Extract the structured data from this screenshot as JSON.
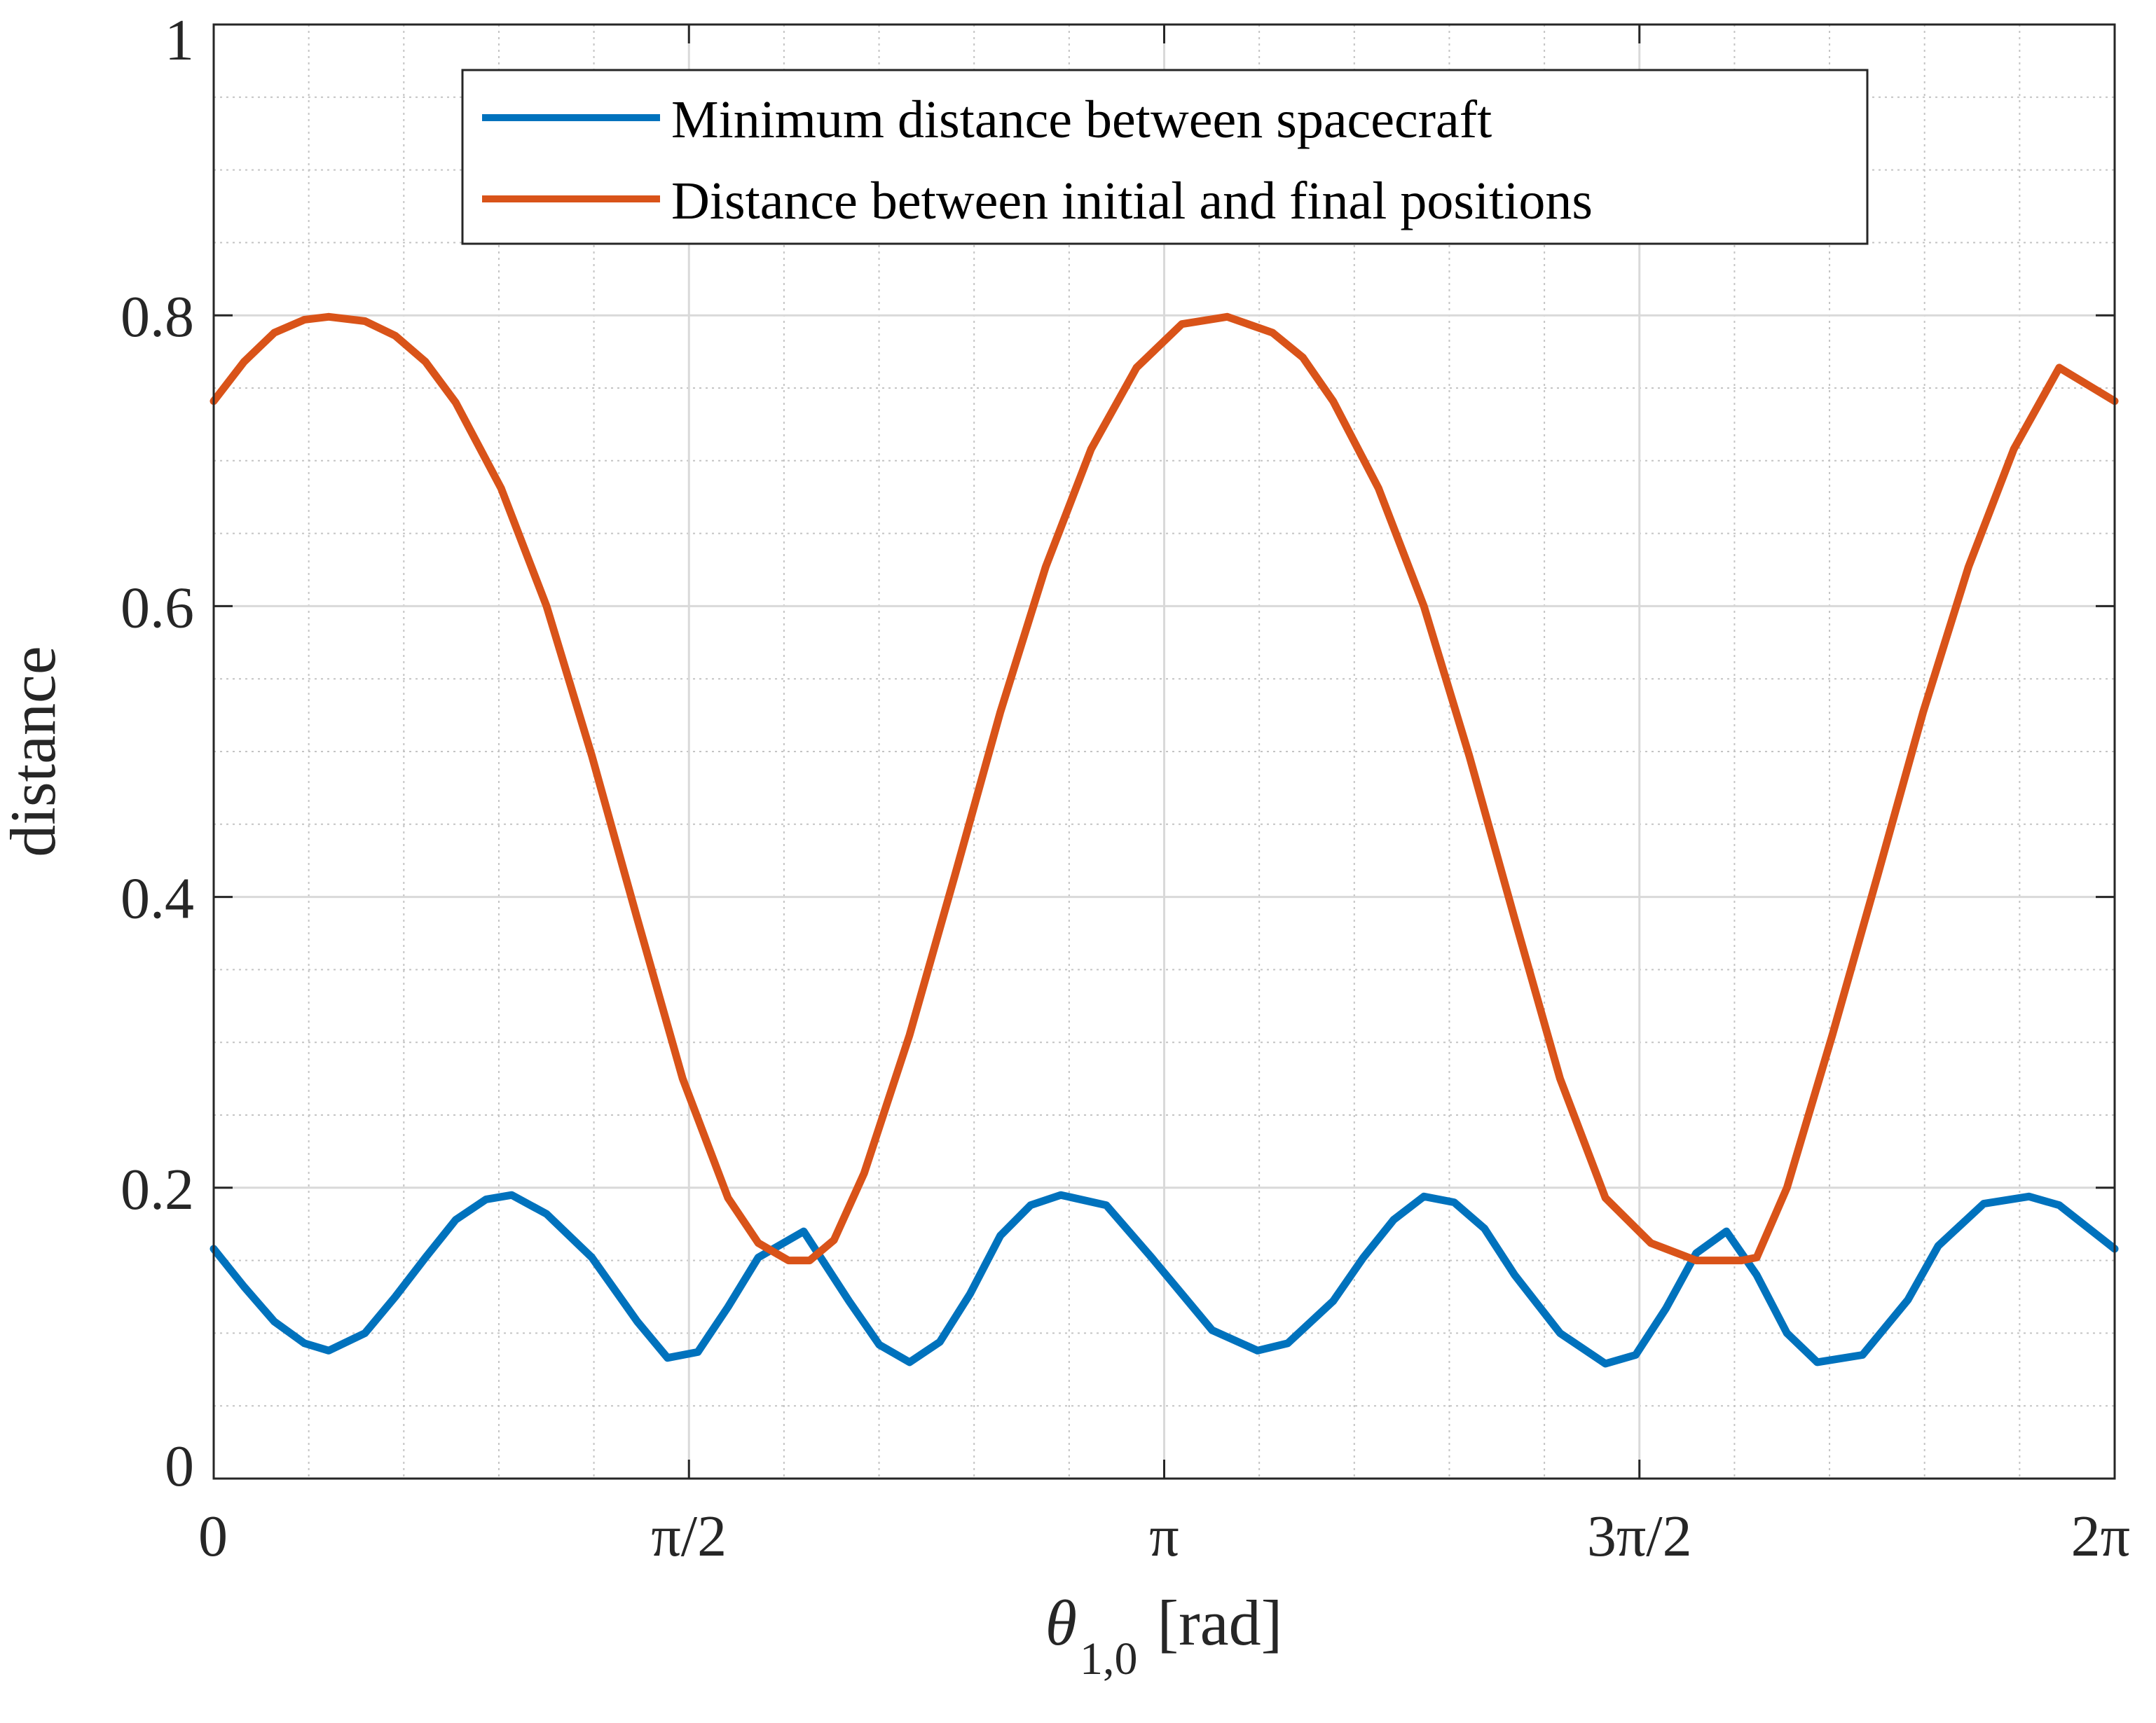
{
  "chart_data": {
    "type": "line",
    "xlabel": {
      "symbol": "θ",
      "subscript": "1,0",
      "unit": "[rad]"
    },
    "ylabel": "distance",
    "xlim": [
      0,
      6.283185
    ],
    "ylim": [
      0,
      1
    ],
    "xticks": [
      {
        "value": 0,
        "label": "0"
      },
      {
        "value": 1.570796,
        "label": "π/2"
      },
      {
        "value": 3.141593,
        "label": "π"
      },
      {
        "value": 4.712389,
        "label": "3π/2"
      },
      {
        "value": 6.283185,
        "label": "2π"
      }
    ],
    "yticks": [
      {
        "value": 0,
        "label": "0"
      },
      {
        "value": 0.2,
        "label": "0.2"
      },
      {
        "value": 0.4,
        "label": "0.4"
      },
      {
        "value": 0.6,
        "label": "0.6"
      },
      {
        "value": 0.8,
        "label": "0.8"
      },
      {
        "value": 1,
        "label": "1"
      }
    ],
    "grid": true,
    "minor_grid": true,
    "legend_position": "top-center",
    "series": [
      {
        "name": "Minimum distance between spacecraft",
        "color": "#0072BD",
        "x": [
          0,
          0.1,
          0.2,
          0.3,
          0.38,
          0.5,
          0.6,
          0.7,
          0.8,
          0.9,
          0.985,
          1.1,
          1.25,
          1.4,
          1.5,
          1.6,
          1.7,
          1.8,
          1.95,
          2.1,
          2.2,
          2.3,
          2.4,
          2.5,
          2.6,
          2.7,
          2.8,
          2.95,
          3.1,
          3.2,
          3.3,
          3.45,
          3.55,
          3.7,
          3.8,
          3.9,
          4.0,
          4.1,
          4.2,
          4.3,
          4.45,
          4.6,
          4.7,
          4.8,
          4.9,
          5.0,
          5.1,
          5.2,
          5.3,
          5.45,
          5.6,
          5.7,
          5.85,
          6.0,
          6.1,
          6.283185
        ],
        "y": [
          0.158,
          0.132,
          0.108,
          0.093,
          0.088,
          0.1,
          0.125,
          0.152,
          0.178,
          0.192,
          0.195,
          0.182,
          0.152,
          0.108,
          0.083,
          0.087,
          0.118,
          0.152,
          0.17,
          0.122,
          0.092,
          0.08,
          0.094,
          0.127,
          0.167,
          0.188,
          0.195,
          0.188,
          0.152,
          0.127,
          0.102,
          0.088,
          0.093,
          0.122,
          0.152,
          0.178,
          0.194,
          0.19,
          0.172,
          0.14,
          0.1,
          0.079,
          0.085,
          0.117,
          0.155,
          0.17,
          0.14,
          0.1,
          0.08,
          0.085,
          0.123,
          0.16,
          0.189,
          0.194,
          0.188,
          0.158
        ]
      },
      {
        "name": "Distance between initial and final positions",
        "color": "#D95319",
        "x": [
          0,
          0.1,
          0.2,
          0.3,
          0.38,
          0.5,
          0.6,
          0.7,
          0.8,
          0.95,
          1.1,
          1.25,
          1.4,
          1.55,
          1.7,
          1.8,
          1.9,
          1.97,
          2.05,
          2.15,
          2.3,
          2.45,
          2.6,
          2.75,
          2.9,
          3.05,
          3.2,
          3.35,
          3.5,
          3.6,
          3.7,
          3.85,
          4.0,
          4.15,
          4.3,
          4.45,
          4.6,
          4.75,
          4.9,
          5.05,
          5.1,
          5.2,
          5.35,
          5.5,
          5.65,
          5.8,
          5.95,
          6.1,
          6.283185
        ],
        "y": [
          0.741,
          0.768,
          0.788,
          0.797,
          0.799,
          0.796,
          0.786,
          0.768,
          0.74,
          0.681,
          0.6,
          0.497,
          0.385,
          0.275,
          0.193,
          0.162,
          0.15,
          0.15,
          0.164,
          0.21,
          0.305,
          0.415,
          0.527,
          0.627,
          0.708,
          0.764,
          0.794,
          0.799,
          0.788,
          0.771,
          0.741,
          0.681,
          0.6,
          0.497,
          0.385,
          0.275,
          0.193,
          0.162,
          0.15,
          0.15,
          0.152,
          0.2,
          0.305,
          0.415,
          0.527,
          0.627,
          0.708,
          0.764,
          0.741
        ]
      }
    ]
  }
}
